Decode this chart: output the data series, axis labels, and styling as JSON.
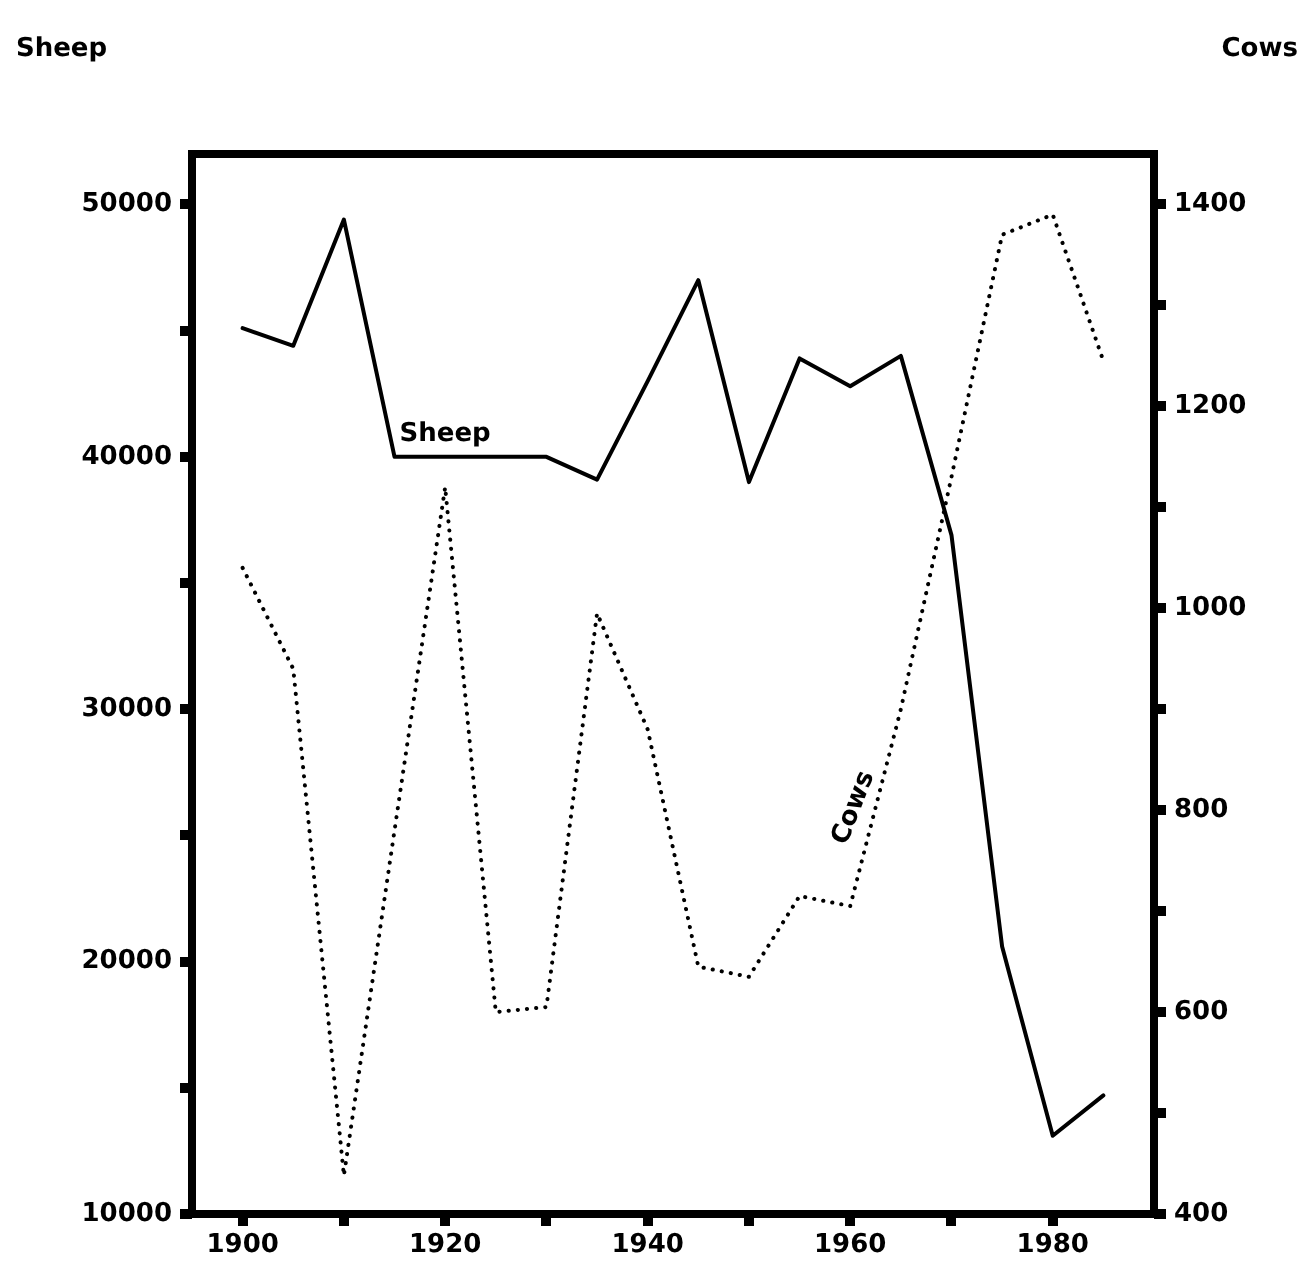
{
  "chart_data": {
    "type": "line",
    "ylabel": "Sheep",
    "y2label": "Cows",
    "x": [
      1900,
      1905,
      1910,
      1915,
      1920,
      1925,
      1930,
      1935,
      1940,
      1945,
      1950,
      1955,
      1960,
      1965,
      1970,
      1975,
      1980,
      1985
    ],
    "series": [
      {
        "name": "Sheep",
        "color": "#000000",
        "line_style": "solid",
        "values": [
          45100,
          44400,
          49400,
          40000,
          40000,
          40000,
          40000,
          39100,
          43000,
          47000,
          39000,
          43900,
          42800,
          44000,
          36900,
          20600,
          13100,
          14700
        ]
      },
      {
        "name": "Cows",
        "color": "#000000",
        "line_style": "dotted",
        "axis": "y2",
        "values": [
          1040,
          940,
          438,
          780,
          1120,
          600,
          605,
          995,
          880,
          645,
          635,
          715,
          705,
          900,
          1130,
          1370,
          1390,
          1245
        ]
      }
    ],
    "xlim": [
      1895,
      1990
    ],
    "xticks": [
      1900,
      {
        "value": 1910,
        "label": null
      },
      1920,
      {
        "value": 1930,
        "label": null
      },
      1940,
      {
        "value": 1950,
        "label": null
      },
      1960,
      {
        "value": 1970,
        "label": null
      },
      1980
    ],
    "ylim": [
      10000,
      52000
    ],
    "yticks": [
      10000,
      {
        "value": 15000,
        "label": null
      },
      20000,
      {
        "value": 25000,
        "label": null
      },
      30000,
      {
        "value": 35000,
        "label": null
      },
      40000,
      {
        "value": 45000,
        "label": null
      },
      50000
    ],
    "y2lim": [
      400,
      1450
    ],
    "y2ticks": [
      400,
      {
        "value": 500,
        "label": null
      },
      600,
      {
        "value": 700,
        "label": null
      },
      800,
      {
        "value": 900,
        "label": null
      },
      1000,
      {
        "value": 1100,
        "label": null
      },
      1200,
      {
        "value": 1300,
        "label": null
      },
      1400
    ],
    "grid": false,
    "legend": false,
    "marker": "none"
  }
}
